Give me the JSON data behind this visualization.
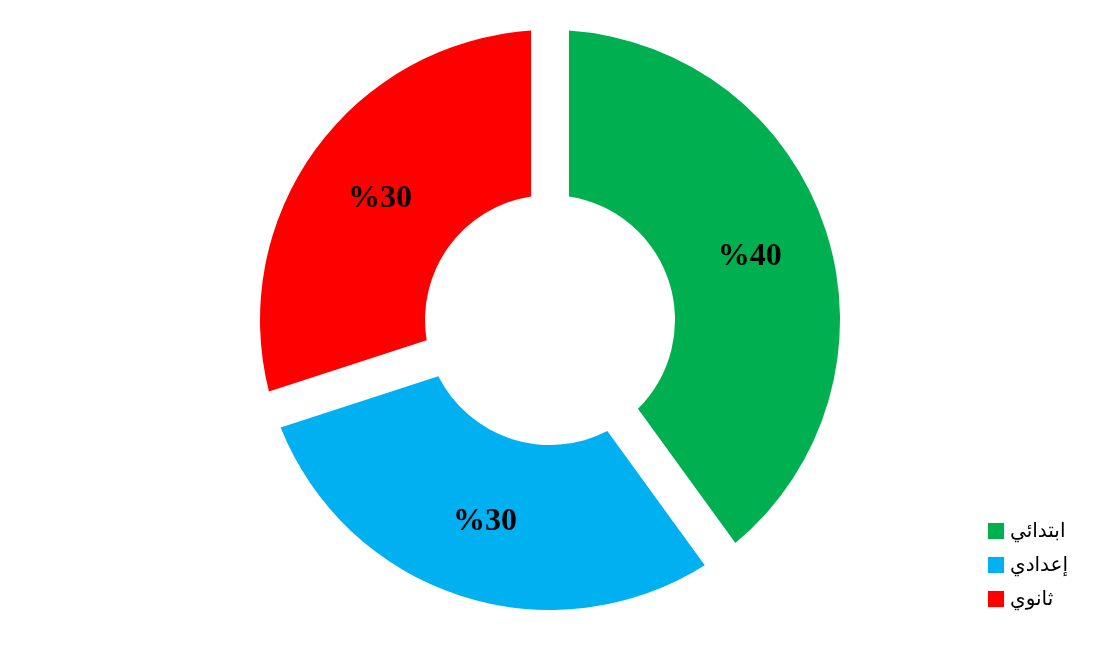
{
  "chart_data": {
    "type": "donut",
    "categories": [
      "ابتدائي",
      "إعدادي",
      "ثانوي"
    ],
    "values": [
      40,
      30,
      30
    ],
    "colors": [
      "#00b050",
      "#00b0f0",
      "#ff0000"
    ],
    "value_labels": [
      "%40",
      "%30",
      "%30"
    ],
    "legend": "bottom right"
  }
}
